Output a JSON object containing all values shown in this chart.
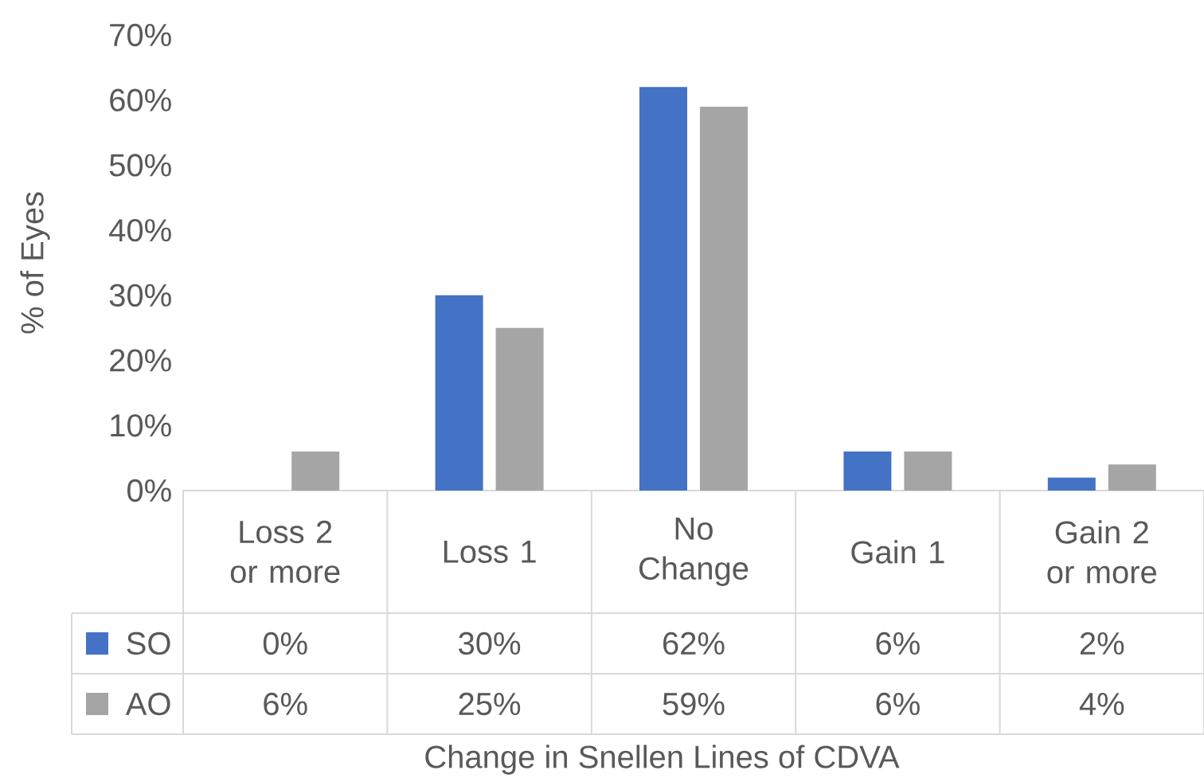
{
  "chart_data": {
    "type": "bar",
    "ylabel": "% of Eyes",
    "annotations": [
      "Change in Snellen Lines of CDVA"
    ],
    "categories": [
      "Loss 2 or more",
      "Loss 1",
      "No Change",
      "Gain 1",
      "Gain 2 or more"
    ],
    "series": [
      {
        "name": "SO",
        "color": "#4472c4",
        "values": [
          0,
          30,
          62,
          6,
          2
        ],
        "value_labels": [
          "0%",
          "30%",
          "62%",
          "6%",
          "2%"
        ]
      },
      {
        "name": "AO",
        "color": "#a5a5a5",
        "values": [
          6,
          25,
          59,
          6,
          4
        ],
        "value_labels": [
          "6%",
          "25%",
          "59%",
          "6%",
          "4%"
        ]
      }
    ],
    "ylim": [
      0,
      70
    ],
    "yticks": [
      {
        "value": 0,
        "label": "0%"
      },
      {
        "value": 10,
        "label": "10%"
      },
      {
        "value": 20,
        "label": "20%"
      },
      {
        "value": 30,
        "label": "30%"
      },
      {
        "value": 40,
        "label": "40%"
      },
      {
        "value": 50,
        "label": "50%"
      },
      {
        "value": 60,
        "label": "60%"
      },
      {
        "value": 70,
        "label": "70%"
      }
    ],
    "legend": "bottom"
  }
}
